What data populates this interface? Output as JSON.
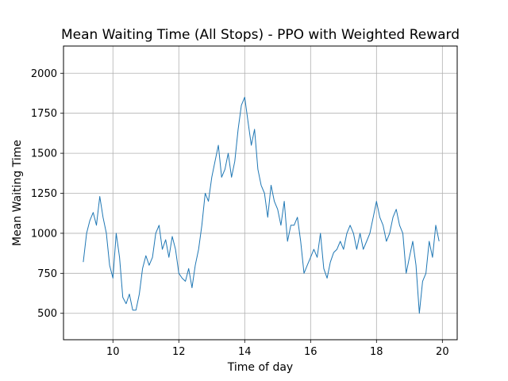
{
  "chart_data": {
    "type": "line",
    "title": "Mean Waiting Time (All Stops) - PPO with Weighted Reward",
    "xlabel": "Time of day",
    "ylabel": "Mean Waiting Time",
    "xlim": [
      8.5,
      20.45
    ],
    "ylim": [
      335,
      2170
    ],
    "xticks": [
      10,
      12,
      14,
      16,
      18,
      20
    ],
    "yticks": [
      500,
      750,
      1000,
      1250,
      1500,
      1750,
      2000
    ],
    "grid": true,
    "legend": "none",
    "line_color": "#1f77b4",
    "series": [
      {
        "x": [
          9.1,
          9.2,
          9.3,
          9.4,
          9.5,
          9.6,
          9.7,
          9.8,
          9.9,
          10.0,
          10.1,
          10.2,
          10.3,
          10.4,
          10.5,
          10.6,
          10.7,
          10.8,
          10.9,
          11.0,
          11.1,
          11.2,
          11.3,
          11.4,
          11.5,
          11.6,
          11.7,
          11.8,
          11.9,
          12.0,
          12.1,
          12.2,
          12.3,
          12.4,
          12.5,
          12.6,
          12.7,
          12.8,
          12.9,
          13.0,
          13.1,
          13.2,
          13.3,
          13.4,
          13.5,
          13.6,
          13.7,
          13.8,
          13.9,
          14.0,
          14.1,
          14.2,
          14.3,
          14.4,
          14.5,
          14.6,
          14.7,
          14.8,
          14.9,
          15.0,
          15.1,
          15.2,
          15.3,
          15.4,
          15.5,
          15.6,
          15.7,
          15.8,
          15.9,
          16.0,
          16.1,
          16.2,
          16.3,
          16.4,
          16.5,
          16.6,
          16.7,
          16.8,
          16.9,
          17.0,
          17.1,
          17.2,
          17.3,
          17.4,
          17.5,
          17.6,
          17.7,
          17.8,
          17.9,
          18.0,
          18.1,
          18.2,
          18.3,
          18.4,
          18.5,
          18.6,
          18.7,
          18.8,
          18.9,
          19.0,
          19.1,
          19.2,
          19.3,
          19.4,
          19.5,
          19.6,
          19.7,
          19.8,
          19.9
        ],
        "y": [
          820,
          1000,
          1080,
          1130,
          1050,
          1230,
          1100,
          1000,
          800,
          720,
          1000,
          850,
          600,
          560,
          620,
          520,
          520,
          620,
          780,
          860,
          800,
          850,
          1000,
          1050,
          900,
          960,
          850,
          980,
          900,
          750,
          720,
          700,
          780,
          660,
          800,
          900,
          1050,
          1250,
          1200,
          1350,
          1450,
          1550,
          1350,
          1400,
          1500,
          1350,
          1450,
          1650,
          1800,
          1850,
          1700,
          1550,
          1650,
          1400,
          1300,
          1250,
          1100,
          1300,
          1200,
          1150,
          1050,
          1200,
          950,
          1050,
          1050,
          1100,
          950,
          750,
          800,
          850,
          900,
          850,
          1000,
          780,
          720,
          820,
          880,
          900,
          950,
          900,
          1000,
          1050,
          1000,
          900,
          1000,
          900,
          950,
          1000,
          1100,
          1200,
          1100,
          1050,
          950,
          1000,
          1100,
          1150,
          1050,
          1000,
          750,
          850,
          950,
          800,
          500,
          700,
          750,
          950,
          850,
          1050,
          950
        ]
      }
    ]
  }
}
